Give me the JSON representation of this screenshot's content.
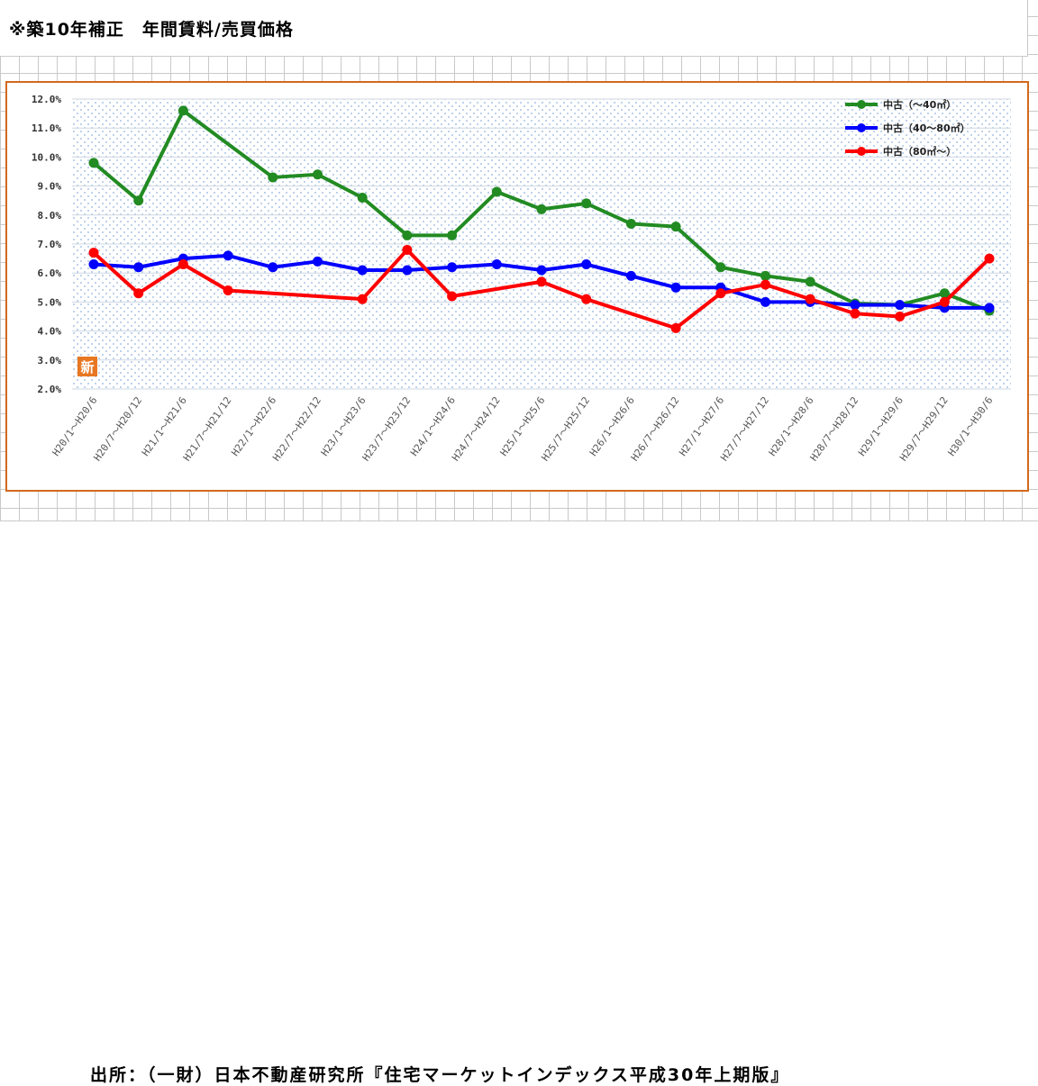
{
  "heading": "※築10年補正　年間賃料/売買価格",
  "source": "出所：（一財）日本不動産研究所『住宅マーケットインデックス平成30年上期版』",
  "badge_text": "新",
  "colors": {
    "frame": "#d2691e",
    "dots": "#a9c4e6",
    "green": "#228b22",
    "blue": "#0000ff",
    "red": "#ff0000",
    "badge": "#e87722"
  },
  "chart_data": {
    "type": "line",
    "title": "",
    "xlabel": "",
    "ylabel": "",
    "ylim": [
      2.0,
      12.0
    ],
    "yticks": [
      "12.0%",
      "11.0%",
      "10.0%",
      "9.0%",
      "8.0%",
      "7.0%",
      "6.0%",
      "5.0%",
      "4.0%",
      "3.0%",
      "2.0%"
    ],
    "categories": [
      "H20/1～H20/6",
      "H20/7～H20/12",
      "H21/1～H21/6",
      "H21/7～H21/12",
      "H22/1～H22/6",
      "H22/7～H22/12",
      "H23/1～H23/6",
      "H23/7～H23/12",
      "H24/1～H24/6",
      "H24/7～H24/12",
      "H25/1～H25/6",
      "H25/7～H25/12",
      "H26/1～H26/6",
      "H26/7～H26/12",
      "H27/1～H27/6",
      "H27/7～H27/12",
      "H28/1～H28/6",
      "H28/7～H28/12",
      "H29/1～H29/6",
      "H29/7～H29/12",
      "H30/1～H30/6"
    ],
    "legend_position": "top-right",
    "series": [
      {
        "name": "中古（～40㎡）",
        "color": "#228b22",
        "values": [
          9.8,
          8.5,
          11.6,
          null,
          9.3,
          9.4,
          8.6,
          7.3,
          7.3,
          8.8,
          8.2,
          8.4,
          7.7,
          7.6,
          6.2,
          5.9,
          5.7,
          4.95,
          4.9,
          5.3,
          4.7
        ]
      },
      {
        "name": "中古（40～80㎡）",
        "color": "#0000ff",
        "values": [
          6.3,
          6.2,
          6.5,
          6.6,
          6.2,
          6.4,
          6.1,
          6.1,
          6.2,
          6.3,
          6.1,
          6.3,
          5.9,
          5.5,
          5.5,
          5.0,
          5.0,
          4.9,
          4.9,
          4.8,
          4.8
        ]
      },
      {
        "name": "中古（80㎡～）",
        "color": "#ff0000",
        "values": [
          6.7,
          5.3,
          6.3,
          5.4,
          null,
          null,
          5.1,
          6.8,
          5.2,
          null,
          5.7,
          5.1,
          null,
          4.1,
          5.3,
          5.6,
          5.1,
          4.6,
          4.5,
          5.0,
          6.5
        ]
      }
    ]
  }
}
